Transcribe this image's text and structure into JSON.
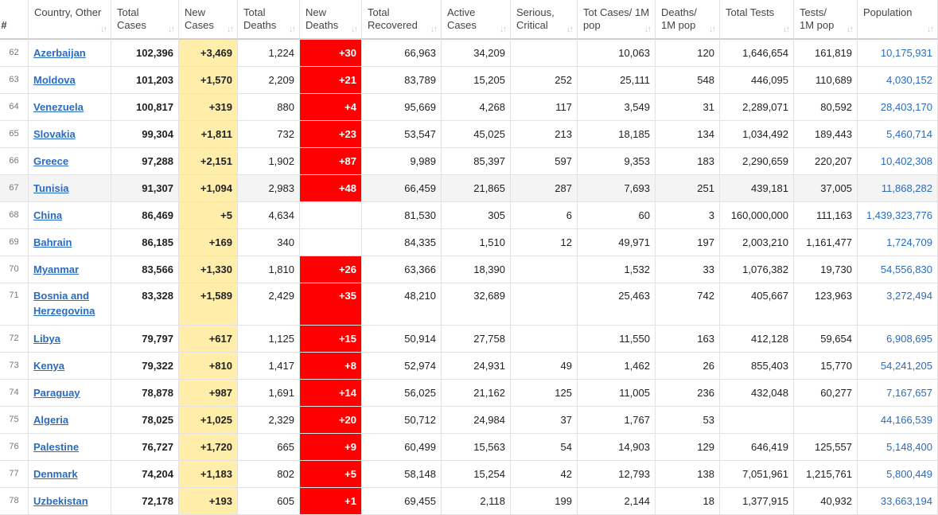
{
  "headers": [
    {
      "label": "#",
      "sort": ""
    },
    {
      "label": "Country, Other",
      "sort": "↓↑"
    },
    {
      "label": "Total Cases",
      "sort": "↓↑"
    },
    {
      "label": "New Cases",
      "sort": "↓↑"
    },
    {
      "label": "Total Deaths",
      "sort": "↓↑"
    },
    {
      "label": "New Deaths",
      "sort": "↓↑"
    },
    {
      "label": "Total Recovered",
      "sort": "↓↑"
    },
    {
      "label": "Active Cases",
      "sort": "↓↑"
    },
    {
      "label": "Serious, Critical",
      "sort": "↓↑"
    },
    {
      "label": "Tot Cases/ 1M pop",
      "sort": "↓↑"
    },
    {
      "label": "Deaths/ 1M pop",
      "sort": "↓↑"
    },
    {
      "label": "Total Tests",
      "sort": "↓↑"
    },
    {
      "label": "Tests/ 1M pop",
      "sort": "↓↑"
    },
    {
      "label": "Population",
      "sort": "↓↑"
    }
  ],
  "rows": [
    {
      "rank": "62",
      "country": "Azerbaijan",
      "total_cases": "102,396",
      "new_cases": "+3,469",
      "total_deaths": "1,224",
      "new_deaths": "+30",
      "total_recovered": "66,963",
      "active_cases": "34,209",
      "serious": "",
      "cases_per_1m": "10,063",
      "deaths_per_1m": "120",
      "total_tests": "1,646,654",
      "tests_per_1m": "161,819",
      "population": "10,175,931"
    },
    {
      "rank": "63",
      "country": "Moldova",
      "total_cases": "101,203",
      "new_cases": "+1,570",
      "total_deaths": "2,209",
      "new_deaths": "+21",
      "total_recovered": "83,789",
      "active_cases": "15,205",
      "serious": "252",
      "cases_per_1m": "25,111",
      "deaths_per_1m": "548",
      "total_tests": "446,095",
      "tests_per_1m": "110,689",
      "population": "4,030,152"
    },
    {
      "rank": "64",
      "country": "Venezuela",
      "total_cases": "100,817",
      "new_cases": "+319",
      "total_deaths": "880",
      "new_deaths": "+4",
      "total_recovered": "95,669",
      "active_cases": "4,268",
      "serious": "117",
      "cases_per_1m": "3,549",
      "deaths_per_1m": "31",
      "total_tests": "2,289,071",
      "tests_per_1m": "80,592",
      "population": "28,403,170"
    },
    {
      "rank": "65",
      "country": "Slovakia",
      "total_cases": "99,304",
      "new_cases": "+1,811",
      "total_deaths": "732",
      "new_deaths": "+23",
      "total_recovered": "53,547",
      "active_cases": "45,025",
      "serious": "213",
      "cases_per_1m": "18,185",
      "deaths_per_1m": "134",
      "total_tests": "1,034,492",
      "tests_per_1m": "189,443",
      "population": "5,460,714"
    },
    {
      "rank": "66",
      "country": "Greece",
      "total_cases": "97,288",
      "new_cases": "+2,151",
      "total_deaths": "1,902",
      "new_deaths": "+87",
      "total_recovered": "9,989",
      "active_cases": "85,397",
      "serious": "597",
      "cases_per_1m": "9,353",
      "deaths_per_1m": "183",
      "total_tests": "2,290,659",
      "tests_per_1m": "220,207",
      "population": "10,402,308"
    },
    {
      "rank": "67",
      "country": "Tunisia",
      "total_cases": "91,307",
      "new_cases": "+1,094",
      "total_deaths": "2,983",
      "new_deaths": "+48",
      "total_recovered": "66,459",
      "active_cases": "21,865",
      "serious": "287",
      "cases_per_1m": "7,693",
      "deaths_per_1m": "251",
      "total_tests": "439,181",
      "tests_per_1m": "37,005",
      "population": "11,868,282"
    },
    {
      "rank": "68",
      "country": "China",
      "total_cases": "86,469",
      "new_cases": "+5",
      "total_deaths": "4,634",
      "new_deaths": "",
      "total_recovered": "81,530",
      "active_cases": "305",
      "serious": "6",
      "cases_per_1m": "60",
      "deaths_per_1m": "3",
      "total_tests": "160,000,000",
      "tests_per_1m": "111,163",
      "population": "1,439,323,776"
    },
    {
      "rank": "69",
      "country": "Bahrain",
      "total_cases": "86,185",
      "new_cases": "+169",
      "total_deaths": "340",
      "new_deaths": "",
      "total_recovered": "84,335",
      "active_cases": "1,510",
      "serious": "12",
      "cases_per_1m": "49,971",
      "deaths_per_1m": "197",
      "total_tests": "2,003,210",
      "tests_per_1m": "1,161,477",
      "population": "1,724,709"
    },
    {
      "rank": "70",
      "country": "Myanmar",
      "total_cases": "83,566",
      "new_cases": "+1,330",
      "total_deaths": "1,810",
      "new_deaths": "+26",
      "total_recovered": "63,366",
      "active_cases": "18,390",
      "serious": "",
      "cases_per_1m": "1,532",
      "deaths_per_1m": "33",
      "total_tests": "1,076,382",
      "tests_per_1m": "19,730",
      "population": "54,556,830"
    },
    {
      "rank": "71",
      "country": "Bosnia and Herzegovina",
      "total_cases": "83,328",
      "new_cases": "+1,589",
      "total_deaths": "2,429",
      "new_deaths": "+35",
      "total_recovered": "48,210",
      "active_cases": "32,689",
      "serious": "",
      "cases_per_1m": "25,463",
      "deaths_per_1m": "742",
      "total_tests": "405,667",
      "tests_per_1m": "123,963",
      "population": "3,272,494"
    },
    {
      "rank": "72",
      "country": "Libya",
      "total_cases": "79,797",
      "new_cases": "+617",
      "total_deaths": "1,125",
      "new_deaths": "+15",
      "total_recovered": "50,914",
      "active_cases": "27,758",
      "serious": "",
      "cases_per_1m": "11,550",
      "deaths_per_1m": "163",
      "total_tests": "412,128",
      "tests_per_1m": "59,654",
      "population": "6,908,695"
    },
    {
      "rank": "73",
      "country": "Kenya",
      "total_cases": "79,322",
      "new_cases": "+810",
      "total_deaths": "1,417",
      "new_deaths": "+8",
      "total_recovered": "52,974",
      "active_cases": "24,931",
      "serious": "49",
      "cases_per_1m": "1,462",
      "deaths_per_1m": "26",
      "total_tests": "855,403",
      "tests_per_1m": "15,770",
      "population": "54,241,205"
    },
    {
      "rank": "74",
      "country": "Paraguay",
      "total_cases": "78,878",
      "new_cases": "+987",
      "total_deaths": "1,691",
      "new_deaths": "+14",
      "total_recovered": "56,025",
      "active_cases": "21,162",
      "serious": "125",
      "cases_per_1m": "11,005",
      "deaths_per_1m": "236",
      "total_tests": "432,048",
      "tests_per_1m": "60,277",
      "population": "7,167,657"
    },
    {
      "rank": "75",
      "country": "Algeria",
      "total_cases": "78,025",
      "new_cases": "+1,025",
      "total_deaths": "2,329",
      "new_deaths": "+20",
      "total_recovered": "50,712",
      "active_cases": "24,984",
      "serious": "37",
      "cases_per_1m": "1,767",
      "deaths_per_1m": "53",
      "total_tests": "",
      "tests_per_1m": "",
      "population": "44,166,539"
    },
    {
      "rank": "76",
      "country": "Palestine",
      "total_cases": "76,727",
      "new_cases": "+1,720",
      "total_deaths": "665",
      "new_deaths": "+9",
      "total_recovered": "60,499",
      "active_cases": "15,563",
      "serious": "54",
      "cases_per_1m": "14,903",
      "deaths_per_1m": "129",
      "total_tests": "646,419",
      "tests_per_1m": "125,557",
      "population": "5,148,400"
    },
    {
      "rank": "77",
      "country": "Denmark",
      "total_cases": "74,204",
      "new_cases": "+1,183",
      "total_deaths": "802",
      "new_deaths": "+5",
      "total_recovered": "58,148",
      "active_cases": "15,254",
      "serious": "42",
      "cases_per_1m": "12,793",
      "deaths_per_1m": "138",
      "total_tests": "7,051,961",
      "tests_per_1m": "1,215,761",
      "population": "5,800,449"
    },
    {
      "rank": "78",
      "country": "Uzbekistan",
      "total_cases": "72,178",
      "new_cases": "+193",
      "total_deaths": "605",
      "new_deaths": "+1",
      "total_recovered": "69,455",
      "active_cases": "2,118",
      "serious": "199",
      "cases_per_1m": "2,144",
      "deaths_per_1m": "18",
      "total_tests": "1,377,915",
      "tests_per_1m": "40,932",
      "population": "33,663,194"
    }
  ],
  "colors": {
    "new_cases_bg": "#ffeeaa",
    "new_deaths_bg": "#ff0000",
    "link": "#2a6cc0",
    "highlight_row": "#f4f4f4"
  }
}
